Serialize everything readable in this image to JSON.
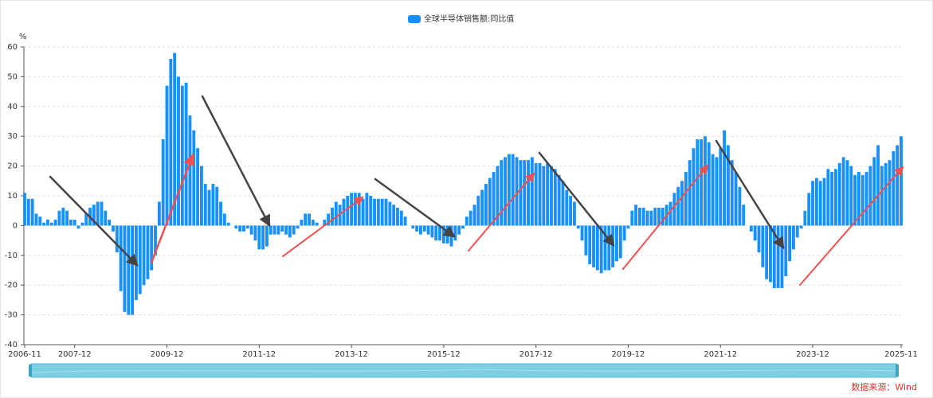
{
  "chart_data": {
    "type": "bar",
    "legend_label": "全球半导体销售额:同比值",
    "y_unit": "%",
    "source": "数据来源：Wind",
    "color": "#1890ff",
    "grid": true,
    "ylim": [
      -40,
      60
    ],
    "yticks": [
      -40,
      -30,
      -20,
      -10,
      0,
      10,
      20,
      30,
      40,
      50,
      60
    ],
    "series": [
      {
        "name": "全球半导体销售额:同比值",
        "color": "#1890ff",
        "values": [
          11,
          9,
          9,
          4,
          3,
          1,
          2,
          1,
          2,
          5,
          6,
          5,
          2,
          2,
          -1,
          1,
          4,
          6,
          7,
          8,
          8,
          5,
          2,
          -2,
          -9,
          -22,
          -29,
          -30,
          -30,
          -25,
          -23,
          -20,
          -18,
          -15,
          -10,
          8,
          29,
          47,
          56,
          58,
          50,
          47,
          48,
          37,
          32,
          26,
          20,
          14,
          12,
          14,
          13,
          8,
          4,
          1,
          0,
          -1,
          -2,
          -2,
          -1,
          -3,
          -5,
          -8,
          -8,
          -7,
          -3,
          -3,
          -3,
          -2,
          -3,
          -4,
          -3,
          -1,
          2,
          4,
          4,
          2,
          1,
          0,
          2,
          4,
          6,
          8,
          7,
          9,
          10,
          11,
          11,
          11,
          9,
          11,
          10,
          9,
          9,
          9,
          9,
          8,
          7,
          6,
          5,
          3,
          0,
          -1,
          -2,
          -3,
          -2,
          -3,
          -4,
          -5,
          -5,
          -6,
          -6,
          -7,
          -5,
          -3,
          -1,
          3,
          5,
          7,
          10,
          12,
          14,
          16,
          18,
          20,
          22,
          23,
          24,
          24,
          23,
          22,
          22,
          22,
          23,
          21,
          21,
          20,
          21,
          20,
          19,
          17,
          15,
          12,
          10,
          8,
          -1,
          -5,
          -10,
          -13,
          -14,
          -15,
          -16,
          -15,
          -15,
          -14,
          -12,
          -11,
          -5,
          -1,
          5,
          7,
          6,
          6,
          5,
          5,
          6,
          6,
          6,
          7,
          8,
          11,
          13,
          15,
          18,
          22,
          26,
          29,
          29,
          30,
          28,
          24,
          23,
          26,
          32,
          27,
          22,
          18,
          13,
          7,
          0,
          -2,
          -5,
          -9,
          -14,
          -18,
          -19,
          -21,
          -21,
          -21,
          -17,
          -12,
          -8,
          -4,
          -1,
          5,
          11,
          15,
          16,
          15,
          16,
          19,
          18,
          19,
          21,
          23,
          22,
          20,
          17,
          18,
          17,
          18,
          20,
          23,
          27,
          20,
          21,
          22,
          25,
          27,
          30
        ]
      }
    ],
    "categories": [
      "2006-11",
      null,
      null,
      null,
      null,
      null,
      null,
      null,
      null,
      null,
      null,
      null,
      null,
      "2007-12",
      null,
      null,
      null,
      null,
      null,
      null,
      null,
      null,
      null,
      null,
      null,
      null,
      null,
      null,
      null,
      null,
      null,
      null,
      null,
      null,
      null,
      null,
      null,
      "2009-12",
      null,
      null,
      null,
      null,
      null,
      null,
      null,
      null,
      null,
      null,
      null,
      null,
      null,
      null,
      null,
      null,
      null,
      null,
      null,
      null,
      null,
      null,
      null,
      "2011-12",
      null,
      null,
      null,
      null,
      null,
      null,
      null,
      null,
      null,
      null,
      null,
      null,
      null,
      null,
      null,
      null,
      null,
      null,
      null,
      null,
      null,
      null,
      null,
      "2013-12",
      null,
      null,
      null,
      null,
      null,
      null,
      null,
      null,
      null,
      null,
      null,
      null,
      null,
      null,
      null,
      null,
      null,
      null,
      null,
      null,
      null,
      null,
      null,
      "2015-12",
      null,
      null,
      null,
      null,
      null,
      null,
      null,
      null,
      null,
      null,
      null,
      null,
      null,
      null,
      null,
      null,
      null,
      null,
      null,
      null,
      null,
      null,
      null,
      "2017-12",
      null,
      null,
      null,
      null,
      null,
      null,
      null,
      null,
      null,
      null,
      null,
      null,
      null,
      null,
      null,
      null,
      null,
      null,
      null,
      null,
      null,
      null,
      null,
      "2019-12",
      null,
      null,
      null,
      null,
      null,
      null,
      null,
      null,
      null,
      null,
      null,
      null,
      null,
      null,
      null,
      null,
      null,
      null,
      null,
      null,
      null,
      null,
      null,
      "2021-12",
      null,
      null,
      null,
      null,
      null,
      null,
      null,
      null,
      null,
      null,
      null,
      null,
      null,
      null,
      null,
      null,
      null,
      null,
      null,
      null,
      null,
      null,
      null,
      "2023-12",
      null,
      null,
      null,
      null,
      null,
      null,
      null,
      null,
      null,
      null,
      null,
      null,
      null,
      null,
      null,
      null,
      null,
      null,
      null,
      null,
      null,
      null,
      "2025-11"
    ]
  }
}
